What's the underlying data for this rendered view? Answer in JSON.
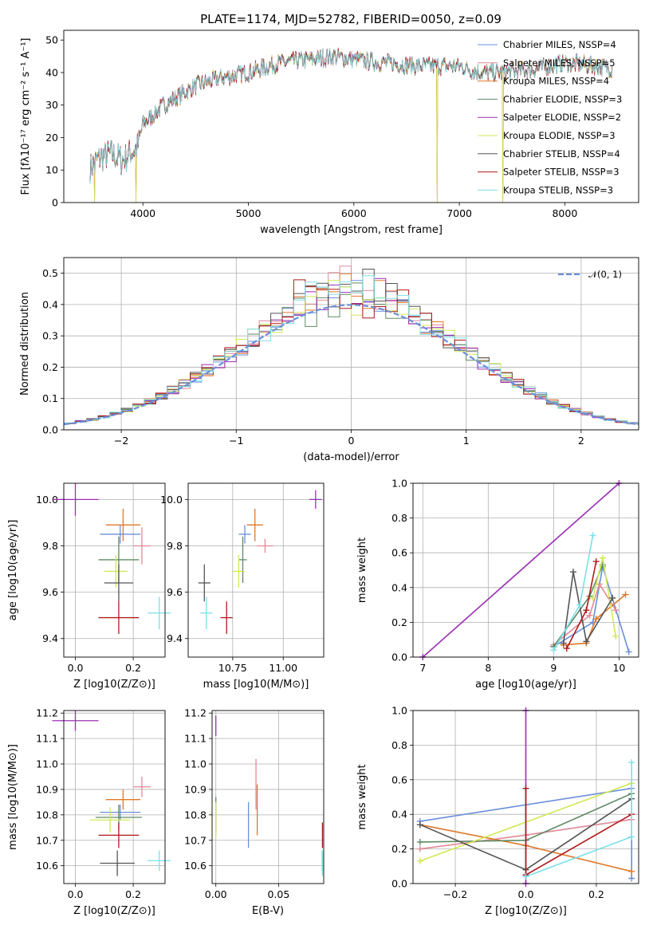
{
  "figure_title": "PLATE=1174, MJD=52782, FIBERID=0050, z=0.09",
  "colors": [
    "#6a8fdc",
    "#e08a97",
    "#e0782a",
    "#5d8a63",
    "#9b2fb3",
    "#d2e855",
    "#555555",
    "#b01a1a",
    "#7ddfe8"
  ],
  "chart_data": [
    {
      "type": "line",
      "title": "PLATE=1174, MJD=52782, FIBERID=0050, z=0.09",
      "xlabel": "wavelength [Angstrom, rest frame]",
      "ylabel": "Flux [fλ10⁻¹⁷ erg cm⁻² s⁻¹ A⁻¹]",
      "xlim": [
        3250,
        8700
      ],
      "ylim": [
        0,
        53
      ],
      "xticks": [
        4000,
        5000,
        6000,
        7000,
        8000
      ],
      "yticks": [
        0,
        10,
        20,
        30,
        40,
        50
      ],
      "grid": false,
      "legend_position": "top-right",
      "series": [
        {
          "name": "Chabrier MILES, NSSP=4",
          "color_idx": 0
        },
        {
          "name": "Salpeter MILES, NSSP=5",
          "color_idx": 1
        },
        {
          "name": "Kroupa MILES, NSSP=4",
          "color_idx": 2
        },
        {
          "name": "Chabrier ELODIE, NSSP=3",
          "color_idx": 3
        },
        {
          "name": "Salpeter ELODIE, NSSP=2",
          "color_idx": 4
        },
        {
          "name": "Kroupa ELODIE, NSSP=3",
          "color_idx": 5
        },
        {
          "name": "Chabrier STELIB, NSSP=4",
          "color_idx": 6
        },
        {
          "name": "Salpeter STELIB, NSSP=3",
          "color_idx": 7
        },
        {
          "name": "Kroupa STELIB, NSSP=3",
          "color_idx": 8
        }
      ],
      "continuum_x": [
        3500,
        3600,
        3700,
        3800,
        3950,
        4000,
        4100,
        4200,
        4300,
        4500,
        4700,
        5000,
        5300,
        5600,
        5800,
        6000,
        6300,
        6600,
        6800,
        7000,
        7200,
        7400,
        7700,
        8000,
        8300,
        8500
      ],
      "continuum_y": [
        11,
        14,
        15,
        13,
        17,
        24,
        27,
        30,
        32,
        36,
        38,
        40,
        43,
        44,
        45,
        44,
        43,
        42,
        42,
        42,
        40,
        40,
        41,
        43,
        42,
        41
      ],
      "dips": [
        {
          "x": 3933,
          "y": 0
        },
        {
          "x": 3540,
          "y": 0
        },
        {
          "x": 6790,
          "y": 0
        },
        {
          "x": 7410,
          "y": 0
        }
      ]
    },
    {
      "type": "bar",
      "xlabel": "(data-model)/error",
      "ylabel": "Normed distribution",
      "xlim": [
        -2.5,
        2.5
      ],
      "ylim": [
        0,
        0.55
      ],
      "xticks": [
        -2,
        -1,
        0,
        1,
        2
      ],
      "yticks": [
        0.0,
        0.1,
        0.2,
        0.3,
        0.4,
        0.5
      ],
      "grid": true,
      "legend_position": "top-right",
      "legend": "𝒩(0, 1)",
      "bin_width": 0.1,
      "histogram_shape": "step histograms of residuals for the 9 fits, following a unit normal curve with peak near 0.45-0.53",
      "reference_curve": {
        "name": "N(0,1)",
        "mean": 0,
        "sigma": 1
      }
    },
    {
      "type": "scatter",
      "xlabel": "Z [log10(Z/Z⊙)]",
      "ylabel": "age  [log10(age/yr)]",
      "xlim": [
        -0.04,
        0.31
      ],
      "ylim": [
        9.32,
        10.07
      ],
      "xticks": [
        0.0,
        0.2
      ],
      "yticks": [
        9.4,
        9.6,
        9.8,
        10.0
      ],
      "points": [
        {
          "c": 0,
          "x": 0.155,
          "y": 9.85,
          "xerr": 0.07,
          "yerr": 0.04
        },
        {
          "c": 1,
          "x": 0.23,
          "y": 9.8,
          "xerr": 0.03,
          "yerr": 0.08
        },
        {
          "c": 2,
          "x": 0.165,
          "y": 9.89,
          "xerr": 0.06,
          "yerr": 0.07
        },
        {
          "c": 3,
          "x": 0.15,
          "y": 9.74,
          "xerr": 0.07,
          "yerr": 0.1
        },
        {
          "c": 4,
          "x": 0.0,
          "y": 10.0,
          "xerr": 0.08,
          "yerr": 0.07
        },
        {
          "c": 5,
          "x": 0.14,
          "y": 9.69,
          "xerr": 0.04,
          "yerr": 0.07
        },
        {
          "c": 6,
          "x": 0.15,
          "y": 9.64,
          "xerr": 0.05,
          "yerr": 0.08
        },
        {
          "c": 7,
          "x": 0.15,
          "y": 9.49,
          "xerr": 0.07,
          "yerr": 0.07
        },
        {
          "c": 8,
          "x": 0.29,
          "y": 9.51,
          "xerr": 0.04,
          "yerr": 0.07
        }
      ]
    },
    {
      "type": "scatter",
      "xlabel": "mass [log10(M/M⊙)]",
      "ylabel": "",
      "xlim": [
        10.53,
        11.2
      ],
      "ylim": [
        9.32,
        10.07
      ],
      "xticks": [
        10.75,
        11.0
      ],
      "yticks": [
        9.4,
        9.6,
        9.8,
        10.0
      ],
      "points": [
        {
          "c": 0,
          "x": 10.81,
          "y": 9.85,
          "xerr": 0.03,
          "yerr": 0.04
        },
        {
          "c": 1,
          "x": 10.91,
          "y": 9.8,
          "xerr": 0.04,
          "yerr": 0.03
        },
        {
          "c": 2,
          "x": 10.86,
          "y": 9.89,
          "xerr": 0.04,
          "yerr": 0.07
        },
        {
          "c": 3,
          "x": 10.8,
          "y": 9.74,
          "xerr": 0.02,
          "yerr": 0.1
        },
        {
          "c": 4,
          "x": 11.16,
          "y": 10.0,
          "xerr": 0.03,
          "yerr": 0.04
        },
        {
          "c": 5,
          "x": 10.78,
          "y": 9.69,
          "xerr": 0.03,
          "yerr": 0.07
        },
        {
          "c": 6,
          "x": 10.61,
          "y": 9.64,
          "xerr": 0.03,
          "yerr": 0.08
        },
        {
          "c": 7,
          "x": 10.72,
          "y": 9.49,
          "xerr": 0.03,
          "yerr": 0.07
        },
        {
          "c": 8,
          "x": 10.62,
          "y": 9.51,
          "xerr": 0.03,
          "yerr": 0.07
        }
      ]
    },
    {
      "type": "line",
      "xlabel": "age  [log10(age/yr)]",
      "ylabel": "mass weight",
      "xlim": [
        6.85,
        10.3
      ],
      "ylim": [
        0,
        1
      ],
      "xticks": [
        7,
        8,
        9,
        10
      ],
      "yticks": [
        0.0,
        0.2,
        0.4,
        0.6,
        0.8,
        1.0
      ],
      "grid": true,
      "series": [
        {
          "c": 0,
          "x": [
            9.0,
            9.6,
            9.75,
            10.15
          ],
          "y": [
            0.06,
            0.2,
            0.52,
            0.03
          ]
        },
        {
          "c": 1,
          "x": [
            9.0,
            9.55,
            9.7,
            9.95
          ],
          "y": [
            0.07,
            0.24,
            0.42,
            0.27
          ]
        },
        {
          "c": 2,
          "x": [
            9.15,
            9.5,
            9.65,
            10.1
          ],
          "y": [
            0.07,
            0.08,
            0.22,
            0.36
          ]
        },
        {
          "c": 3,
          "x": [
            9.0,
            9.55,
            9.75
          ],
          "y": [
            0.06,
            0.35,
            0.53
          ]
        },
        {
          "c": 4,
          "x": [
            7.0,
            10.0
          ],
          "y": [
            0.0,
            1.0
          ]
        },
        {
          "c": 5,
          "x": [
            9.6,
            9.75,
            9.95
          ],
          "y": [
            0.34,
            0.57,
            0.12
          ]
        },
        {
          "c": 6,
          "x": [
            9.15,
            9.3,
            9.5,
            9.9
          ],
          "y": [
            0.08,
            0.49,
            0.09,
            0.34
          ]
        },
        {
          "c": 7,
          "x": [
            9.2,
            9.5,
            9.65
          ],
          "y": [
            0.05,
            0.27,
            0.55
          ]
        },
        {
          "c": 8,
          "x": [
            9.0,
            9.4,
            9.6
          ],
          "y": [
            0.04,
            0.3,
            0.7
          ]
        }
      ]
    },
    {
      "type": "scatter",
      "xlabel": "Z [log10(Z/Z⊙)]",
      "ylabel": "mass [log10(M/M⊙)]",
      "xlim": [
        -0.04,
        0.31
      ],
      "ylim": [
        10.53,
        11.21
      ],
      "xticks": [
        0.0,
        0.2
      ],
      "yticks": [
        10.6,
        10.7,
        10.8,
        10.9,
        11.0,
        11.1,
        11.2
      ],
      "points": [
        {
          "c": 0,
          "x": 0.155,
          "y": 10.81,
          "xerr": 0.07,
          "yerr": 0.03
        },
        {
          "c": 1,
          "x": 0.23,
          "y": 10.91,
          "xerr": 0.03,
          "yerr": 0.04
        },
        {
          "c": 2,
          "x": 0.165,
          "y": 10.86,
          "xerr": 0.06,
          "yerr": 0.04
        },
        {
          "c": 3,
          "x": 0.15,
          "y": 10.79,
          "xerr": 0.08,
          "yerr": 0.05
        },
        {
          "c": 4,
          "x": 0.0,
          "y": 11.17,
          "xerr": 0.08,
          "yerr": 0.04
        },
        {
          "c": 5,
          "x": 0.12,
          "y": 10.78,
          "xerr": 0.07,
          "yerr": 0.05
        },
        {
          "c": 6,
          "x": 0.145,
          "y": 10.61,
          "xerr": 0.06,
          "yerr": 0.05
        },
        {
          "c": 7,
          "x": 0.15,
          "y": 10.72,
          "xerr": 0.07,
          "yerr": 0.05
        },
        {
          "c": 8,
          "x": 0.29,
          "y": 10.62,
          "xerr": 0.04,
          "yerr": 0.04
        }
      ]
    },
    {
      "type": "scatter",
      "xlabel": "E(B-V)",
      "ylabel": "",
      "xlim": [
        -0.003,
        0.086
      ],
      "ylim": [
        10.53,
        11.21
      ],
      "xticks": [
        0.0,
        0.05
      ],
      "yticks": [
        10.6,
        10.7,
        10.8,
        10.9,
        11.0,
        11.1,
        11.2
      ],
      "points": [
        {
          "c": 0,
          "x": 0.026,
          "y": 10.76,
          "xerr": 0,
          "yerr": 0.09
        },
        {
          "c": 1,
          "x": 0.032,
          "y": 10.92,
          "xerr": 0,
          "yerr": 0.1
        },
        {
          "c": 2,
          "x": 0.033,
          "y": 10.82,
          "xerr": 0,
          "yerr": 0.1
        },
        {
          "c": 3,
          "x": 0.0,
          "y": 10.8,
          "xerr": 0,
          "yerr": 0.07
        },
        {
          "c": 4,
          "x": 0.0,
          "y": 11.15,
          "xerr": 0,
          "yerr": 0.04
        },
        {
          "c": 5,
          "x": 0.0,
          "y": 10.78,
          "xerr": 0,
          "yerr": 0.07
        },
        {
          "c": 6,
          "x": 0.085,
          "y": 10.62,
          "xerr": 0,
          "yerr": 0.04
        },
        {
          "c": 7,
          "x": 0.085,
          "y": 10.72,
          "xerr": 0,
          "yerr": 0.05
        },
        {
          "c": 8,
          "x": 0.085,
          "y": 10.61,
          "xerr": 0,
          "yerr": 0.05
        }
      ]
    },
    {
      "type": "line",
      "xlabel": "Z [log10(Z/Z⊙)]",
      "ylabel": "mass weight",
      "xlim": [
        -0.32,
        0.32
      ],
      "ylim": [
        0,
        1
      ],
      "xticks": [
        -0.2,
        0.0,
        0.2
      ],
      "yticks": [
        0.0,
        0.2,
        0.4,
        0.6,
        0.8,
        1.0
      ],
      "grid": true,
      "series": [
        {
          "c": 0,
          "x": [
            -0.3,
            0.3,
            0.3
          ],
          "y": [
            0.36,
            0.55,
            0.03
          ]
        },
        {
          "c": 1,
          "x": [
            -0.3,
            0.0,
            0.3
          ],
          "y": [
            0.2,
            0.28,
            0.37
          ]
        },
        {
          "c": 2,
          "x": [
            -0.3,
            0.0,
            0.3
          ],
          "y": [
            0.34,
            0.22,
            0.07
          ]
        },
        {
          "c": 3,
          "x": [
            -0.3,
            0.0,
            0.3
          ],
          "y": [
            0.24,
            0.25,
            0.52
          ]
        },
        {
          "c": 4,
          "x": [
            0.0,
            0.0
          ],
          "y": [
            0.0,
            1.0
          ]
        },
        {
          "c": 5,
          "x": [
            -0.3,
            0.3
          ],
          "y": [
            0.13,
            0.58
          ]
        },
        {
          "c": 6,
          "x": [
            -0.3,
            0.0,
            0.3
          ],
          "y": [
            0.34,
            0.08,
            0.49
          ]
        },
        {
          "c": 7,
          "x": [
            0.0,
            0.0,
            0.3
          ],
          "y": [
            0.55,
            0.05,
            0.4
          ]
        },
        {
          "c": 8,
          "x": [
            0.0,
            0.3,
            0.3
          ],
          "y": [
            0.04,
            0.27,
            0.7
          ]
        }
      ]
    }
  ]
}
